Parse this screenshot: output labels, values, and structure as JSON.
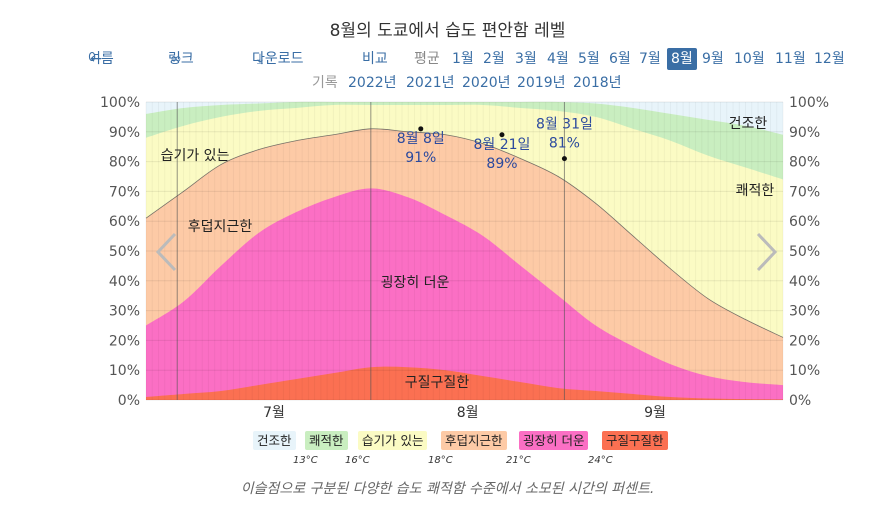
{
  "title": "8월의 도쿄에서 습도 편안함 레벨",
  "nav": {
    "back_label": "여름",
    "link_label": "링크",
    "download_label": "다운로드",
    "compare_label": "비교",
    "average_label": "평균",
    "months": [
      "1월",
      "2월",
      "3월",
      "4월",
      "5월",
      "6월",
      "7월",
      "8월",
      "9월",
      "10월",
      "11월",
      "12월"
    ],
    "selected_month": "8월",
    "record_label": "기록",
    "years": [
      "2022년",
      "2021년",
      "2020년",
      "2019년",
      "2018년"
    ]
  },
  "colors": {
    "dry": "#e8f4fa",
    "comfortable": "#c9eec0",
    "humid": "#fbfbc4",
    "muggy": "#fdcaa6",
    "oppressive": "#fb6fc4",
    "miserable": "#fb7052"
  },
  "chart_data": {
    "type": "area",
    "x_tick_labels": [
      "7월",
      "8월",
      "9월"
    ],
    "yticks": [
      "0%",
      "10%",
      "20%",
      "30%",
      "40%",
      "50%",
      "60%",
      "70%",
      "80%",
      "90%",
      "100%"
    ],
    "ylim": [
      0,
      100
    ],
    "series_names": [
      "건조한",
      "쾌적한",
      "습기가 있는",
      "후덥지근한",
      "굉장히 더운",
      "구질구질한"
    ],
    "area_labels": [
      "건조한",
      "쾌적한",
      "습기가 있는",
      "후덥지근한",
      "굉장히 더운",
      "구질구질한"
    ],
    "x_days": [
      -36,
      -30,
      -24,
      -18,
      -12,
      -6,
      0,
      6,
      12,
      18,
      24,
      30,
      36,
      42,
      48,
      54,
      60,
      66
    ],
    "cumulative": {
      "miserable": [
        1,
        2,
        3,
        5,
        7,
        9,
        11,
        11,
        10,
        8,
        6,
        4,
        3,
        2,
        1,
        0.5,
        0.3,
        0.2
      ],
      "oppressive": [
        25,
        33,
        45,
        56,
        63,
        68,
        71,
        68,
        62,
        55,
        45,
        35,
        25,
        18,
        12,
        8,
        6,
        5
      ],
      "muggy": [
        61,
        70,
        79,
        84,
        87,
        89,
        91,
        90,
        89,
        86,
        81,
        75,
        66,
        55,
        44,
        34,
        27,
        21
      ],
      "humid": [
        88,
        92,
        95,
        97,
        98,
        99,
        99,
        99,
        99,
        99,
        98,
        97,
        95,
        91,
        87,
        82,
        78,
        74
      ],
      "comfortable": [
        96,
        98,
        99,
        99.5,
        100,
        100,
        100,
        100,
        100,
        100,
        100,
        100,
        99.5,
        98,
        96,
        94,
        92,
        89
      ]
    },
    "annotations": [
      {
        "day": 8,
        "label": "8월 8일",
        "value": 91,
        "text": "91%"
      },
      {
        "day": 21,
        "label": "8월 21일",
        "value": 89,
        "text": "89%"
      },
      {
        "day": 31,
        "label": "8월 31일",
        "value": 81,
        "text": "81%"
      }
    ]
  },
  "legend": {
    "items": [
      "건조한",
      "쾌적한",
      "습기가 있는",
      "후덥지근한",
      "굉장히 더운",
      "구질구질한"
    ],
    "thresholds": [
      "13°C",
      "16°C",
      "18°C",
      "21°C",
      "24°C"
    ]
  },
  "caption": "이슬점으로 구분된 다양한 습도 쾌적함 수준에서 소모된 시간의 퍼센트."
}
